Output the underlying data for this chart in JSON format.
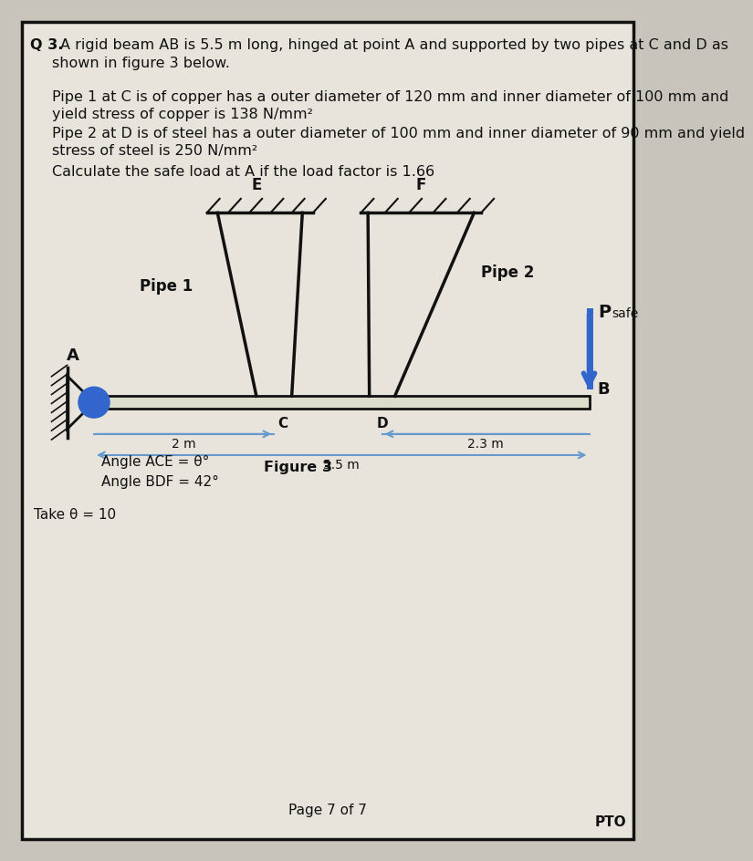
{
  "bg_color": "#c8c4bc",
  "page_color": "#e8e4dc",
  "border_color": "#111111",
  "title_q": "Q 3. ",
  "title_rest": "A rigid beam AB is 5.5 m long, hinged at point A and supported by two pipes at C and D as",
  "title_line2": "shown in figure 3 below.",
  "para1": "Pipe 1 at C is of copper has a outer diameter of 120 mm and inner diameter of 100 mm and",
  "para2": "yield stress of copper is 138 N/mm²",
  "para3": "Pipe 2 at D is of steel has a outer diameter of 100 mm and inner diameter of 90 mm and yield",
  "para4": "stress of steel is 250 N/mm²",
  "para5": "Calculate the safe load at A if the load factor is 1.66",
  "angle_text1": "Angle ACE = θ°",
  "angle_text2": "Angle BDF = 42°",
  "figure_label": "Figure 3",
  "take_text": "Take θ = 10",
  "page_text": "Page 7 of 7",
  "pto_text": "PTO",
  "pipe1_label": "Pipe 1",
  "pipe2_label": "Pipe 2",
  "psafe_label": "P",
  "psafe_sub": "safe",
  "label_A": "A",
  "label_B": "B",
  "label_C": "C",
  "label_D": "D",
  "label_E": "E",
  "label_F": "F",
  "dim_2m": "2 m",
  "dim_23m": "2.3 m",
  "dim_55m": "5.5 m",
  "beam_color": "#111111",
  "pipe_color": "#111111",
  "arrow_color": "#3366cc",
  "dim_arrow_color": "#6699cc",
  "hinge_color": "#3366cc",
  "text_color": "#111111"
}
